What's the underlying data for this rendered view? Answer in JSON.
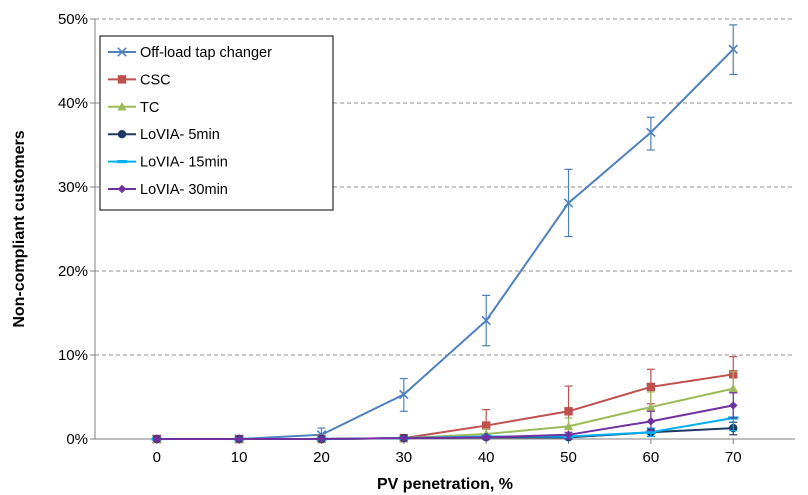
{
  "chart_data": {
    "type": "line",
    "title": "",
    "xlabel": "PV penetration, %",
    "ylabel": "Non-compliant customers",
    "x": [
      0,
      10,
      20,
      30,
      40,
      50,
      60,
      70
    ],
    "xlim": [
      -7.5,
      77.5
    ],
    "ylim": [
      0,
      50
    ],
    "yticks": [
      0,
      10,
      20,
      30,
      40,
      50
    ],
    "ytick_labels": [
      "0%",
      "10%",
      "20%",
      "30%",
      "40%",
      "50%"
    ],
    "xticks": [
      0,
      10,
      20,
      30,
      40,
      50,
      60,
      70
    ],
    "xtick_labels": [
      "0",
      "10",
      "20",
      "30",
      "40",
      "50",
      "60",
      "70"
    ],
    "grid": "horizontal dashed",
    "legend_position": "top-left",
    "series": [
      {
        "name": "Off-load tap changer",
        "color": "#4F81BD",
        "marker": "x",
        "values": [
          0,
          0,
          0.5,
          5.3,
          14.1,
          28.1,
          36.5,
          46.4
        ],
        "error_low": [
          0,
          0,
          0,
          3.3,
          11.1,
          24.1,
          34.4,
          43.4
        ],
        "error_high": [
          0,
          0,
          1.3,
          7.2,
          17.1,
          32.1,
          38.3,
          49.3
        ]
      },
      {
        "name": "CSC",
        "color": "#C0504D",
        "marker": "square",
        "values": [
          0,
          0,
          0,
          0.1,
          1.6,
          3.3,
          6.2,
          7.7
        ],
        "error_low": [
          0,
          0,
          0,
          0,
          0,
          0.5,
          4.2,
          5.5
        ],
        "error_high": [
          0,
          0,
          0,
          0.3,
          3.5,
          6.3,
          8.3,
          9.8
        ]
      },
      {
        "name": "TC",
        "color": "#9BBB59",
        "marker": "triangle",
        "values": [
          0,
          0,
          0,
          0.1,
          0.6,
          1.5,
          3.8,
          6.0
        ],
        "error_low": [
          0,
          0,
          0,
          0,
          0,
          0.5,
          2.0,
          4.0
        ],
        "error_high": [
          0,
          0,
          0,
          0.3,
          1.2,
          2.5,
          5.6,
          8.0
        ]
      },
      {
        "name": "LoVIA- 5min",
        "color": "#1F3864",
        "marker": "circle",
        "values": [
          0,
          0,
          0,
          0.1,
          0.2,
          0.2,
          0.8,
          1.3
        ],
        "error_low": [
          0,
          0,
          0,
          0,
          0,
          0,
          0.3,
          0.5
        ],
        "error_high": [
          0,
          0,
          0,
          0.2,
          0.4,
          0.5,
          1.2,
          2.0
        ]
      },
      {
        "name": "LoVIA- 15min",
        "color": "#00B0F0",
        "marker": "dash",
        "values": [
          0,
          0,
          0,
          0.1,
          0.3,
          0.3,
          0.8,
          2.5
        ],
        "error_low": [
          0,
          0,
          0,
          0,
          0,
          0,
          0.3,
          1.0
        ],
        "error_high": [
          0,
          0,
          0,
          0.2,
          0.5,
          0.6,
          1.3,
          4.0
        ]
      },
      {
        "name": "LoVIA- 30min",
        "color": "#7030A0",
        "marker": "diamond",
        "values": [
          0,
          0,
          0,
          0.1,
          0.2,
          0.5,
          2.1,
          4.0
        ],
        "error_low": [
          0,
          0,
          0,
          0,
          0,
          0,
          1.0,
          2.5
        ],
        "error_high": [
          0,
          0,
          0,
          0.2,
          0.4,
          0.8,
          3.3,
          5.5
        ]
      }
    ]
  }
}
